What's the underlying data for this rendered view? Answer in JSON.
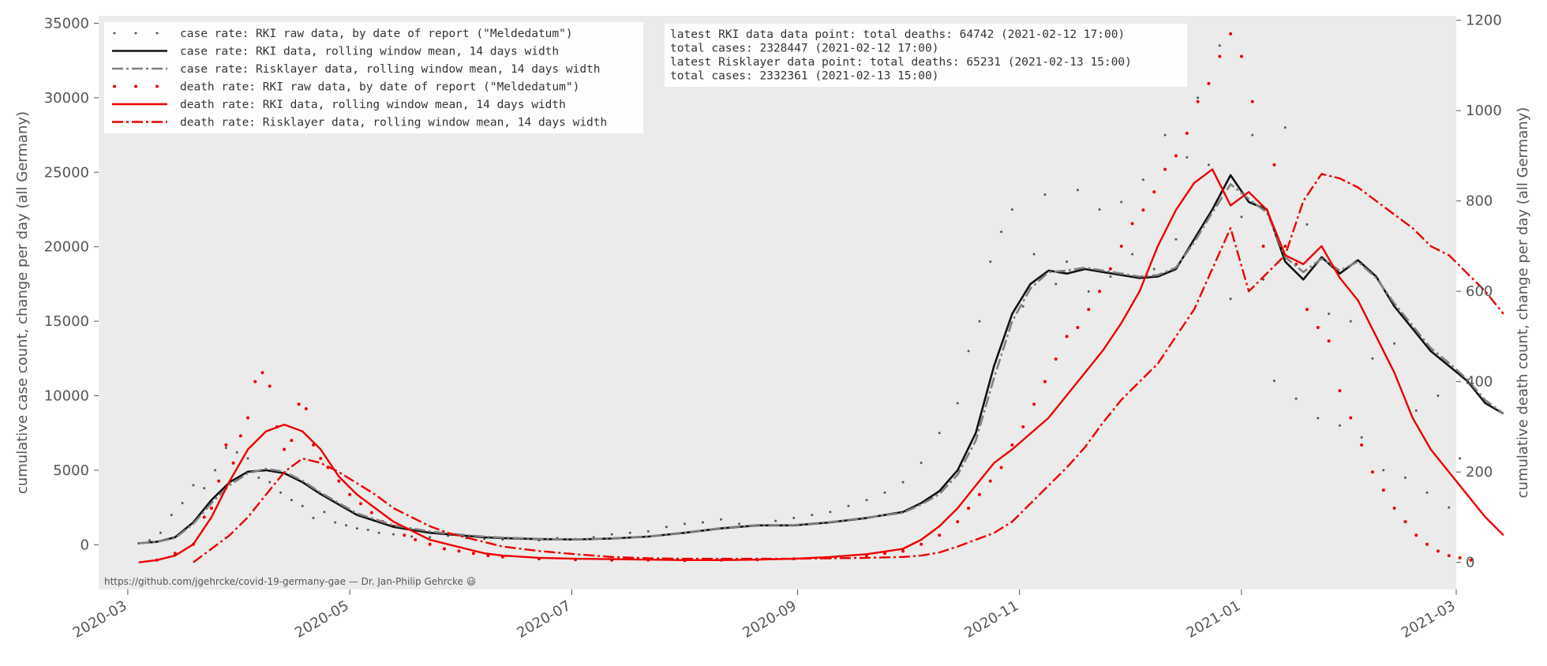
{
  "chart_data": {
    "type": "line",
    "x_start": "2020-03-04",
    "x_ticks": [
      "2020-03",
      "2020-05",
      "2020-07",
      "2020-09",
      "2020-11",
      "2021-01",
      "2021-03"
    ],
    "xlim": [
      "2020-02-22",
      "2021-03-01"
    ],
    "ylabel": "cumulative case count, change per day (all Germany)",
    "ylabel_right": "cumulative death count, change per day (all Germany)",
    "ylim": [
      -3000,
      35500
    ],
    "yticks": [
      0,
      5000,
      10000,
      15000,
      20000,
      25000,
      30000,
      35000
    ],
    "ylim_right": [
      -60,
      1210
    ],
    "yticks_right": [
      0,
      200,
      400,
      600,
      800,
      1000,
      1200
    ],
    "grid": false,
    "legend_position": "top-left",
    "legend": [
      "case rate:  RKI raw data, by date of report (\"Meldedatum\")",
      "case rate:  RKI data, rolling window mean, 14 days width",
      "case rate:  Risklayer data, rolling window mean, 14 days width",
      "death rate: RKI raw data, by date of report (\"Meldedatum\")",
      "death rate: RKI data, rolling window mean, 14 days width",
      "death rate: Risklayer data, rolling window mean, 14 days width"
    ],
    "info_box": [
      "latest RKI data data point:  total deaths:   64742 (2021-02-12 17:00)",
      "                             total cases:  2328447 (2021-02-12 17:00)",
      "latest Risklayer data point: total deaths:   65231 (2021-02-13 15:00)",
      "                             total cases:  2332361 (2021-02-13 15:00)"
    ],
    "footnote": "https://github.com/jgehrcke/covid-19-germany-gae — Dr. Jan-Philip Gehrcke 😃",
    "colors": {
      "background": "#ebebeb",
      "case_raw": "#555555",
      "case_rki": "#111111",
      "case_risklayer": "#808080",
      "death": "#ee0000"
    },
    "series": [
      {
        "name": "case rate:  RKI data, rolling window mean, 14 days width",
        "axis": "left",
        "x": [
          0,
          5,
          10,
          15,
          20,
          25,
          30,
          35,
          40,
          45,
          50,
          55,
          60,
          65,
          70,
          75,
          80,
          85,
          90,
          95,
          100,
          110,
          120,
          130,
          140,
          150,
          160,
          170,
          180,
          190,
          200,
          210,
          215,
          220,
          225,
          230,
          235,
          240,
          245,
          250,
          255,
          260,
          265,
          270,
          275,
          280,
          285,
          290,
          295,
          300,
          305,
          310,
          315,
          320,
          325,
          330,
          335,
          340,
          345,
          350,
          355,
          360,
          365,
          370,
          375,
          380,
          385
        ],
        "y": [
          100,
          200,
          500,
          1500,
          3000,
          4200,
          4900,
          5000,
          4800,
          4200,
          3400,
          2700,
          2000,
          1600,
          1200,
          1000,
          800,
          700,
          600,
          500,
          450,
          380,
          350,
          420,
          550,
          800,
          1100,
          1300,
          1300,
          1500,
          1800,
          2200,
          2800,
          3600,
          5000,
          7500,
          12000,
          15500,
          17500,
          18400,
          18200,
          18500,
          18300,
          18100,
          17900,
          18000,
          18500,
          20500,
          22500,
          24800,
          23000,
          22500,
          19000,
          17800,
          19300,
          18200,
          19100,
          18000,
          16000,
          14500,
          13000,
          12000,
          11000,
          9500,
          8800,
          null,
          null
        ]
      },
      {
        "name": "case rate:  Risklayer data, rolling window mean, 14 days width",
        "axis": "left",
        "x": [
          0,
          5,
          10,
          15,
          20,
          25,
          30,
          35,
          40,
          45,
          50,
          55,
          60,
          65,
          70,
          75,
          80,
          85,
          90,
          95,
          100,
          110,
          120,
          130,
          140,
          150,
          160,
          170,
          180,
          190,
          200,
          210,
          215,
          220,
          225,
          230,
          235,
          240,
          245,
          250,
          255,
          260,
          265,
          270,
          275,
          280,
          285,
          290,
          295,
          300,
          305,
          310,
          315,
          320,
          325,
          330,
          335,
          340,
          345,
          350,
          355,
          360,
          365,
          370,
          375
        ],
        "y": [
          100,
          200,
          450,
          1400,
          2800,
          4000,
          4800,
          5100,
          4900,
          4300,
          3500,
          2800,
          2100,
          1700,
          1300,
          1100,
          900,
          750,
          650,
          550,
          480,
          400,
          360,
          430,
          560,
          820,
          1120,
          1320,
          1320,
          1520,
          1820,
          2150,
          2700,
          3400,
          4700,
          7000,
          11200,
          15000,
          17200,
          18300,
          18400,
          18600,
          18400,
          18200,
          18000,
          18100,
          18600,
          20300,
          22300,
          24200,
          23200,
          22300,
          19300,
          18300,
          19200,
          18400,
          19000,
          17900,
          16200,
          14700,
          13200,
          12200,
          11100,
          9700,
          8800
        ]
      },
      {
        "name": "death rate: RKI data, rolling window mean, 14 days width",
        "axis": "right",
        "x": [
          0,
          5,
          10,
          15,
          20,
          25,
          30,
          35,
          40,
          45,
          50,
          55,
          60,
          65,
          70,
          75,
          80,
          85,
          90,
          95,
          100,
          110,
          120,
          130,
          140,
          150,
          160,
          170,
          180,
          190,
          200,
          210,
          215,
          220,
          225,
          230,
          235,
          240,
          245,
          250,
          255,
          260,
          265,
          270,
          275,
          280,
          285,
          290,
          295,
          300,
          305,
          310,
          315,
          320,
          325,
          330,
          335,
          340,
          345,
          350,
          355,
          360,
          365,
          370,
          375
        ],
        "y": [
          0,
          5,
          15,
          40,
          100,
          180,
          250,
          290,
          305,
          290,
          250,
          190,
          150,
          120,
          90,
          70,
          50,
          40,
          30,
          20,
          15,
          10,
          8,
          7,
          6,
          5,
          5,
          6,
          8,
          12,
          18,
          30,
          50,
          80,
          120,
          170,
          220,
          250,
          285,
          320,
          370,
          420,
          470,
          530,
          600,
          700,
          780,
          840,
          870,
          790,
          820,
          780,
          680,
          660,
          700,
          630,
          580,
          500,
          420,
          320,
          250,
          200,
          150,
          100,
          60
        ]
      },
      {
        "name": "death rate: Risklayer data, rolling window mean, 14 days width",
        "axis": "right",
        "x": [
          15,
          20,
          25,
          30,
          35,
          40,
          45,
          50,
          55,
          60,
          65,
          70,
          75,
          80,
          85,
          90,
          95,
          100,
          110,
          120,
          130,
          140,
          150,
          160,
          170,
          180,
          190,
          200,
          210,
          215,
          220,
          225,
          230,
          235,
          240,
          245,
          250,
          255,
          260,
          265,
          270,
          275,
          280,
          285,
          290,
          295,
          300,
          305,
          310,
          315,
          320,
          325,
          330,
          335,
          340,
          345,
          350,
          355,
          360,
          365,
          370,
          375,
          380
        ],
        "y": [
          0,
          30,
          60,
          100,
          150,
          200,
          230,
          220,
          200,
          175,
          150,
          120,
          100,
          80,
          65,
          55,
          45,
          35,
          25,
          18,
          12,
          9,
          8,
          8,
          8,
          8,
          9,
          10,
          12,
          15,
          22,
          35,
          50,
          65,
          90,
          130,
          170,
          210,
          255,
          310,
          360,
          400,
          440,
          500,
          560,
          650,
          740,
          600,
          640,
          680,
          800,
          860,
          850,
          830,
          800,
          770,
          740,
          700,
          680,
          640,
          600,
          550,
          null
        ]
      }
    ],
    "raw_case_points": [
      [
        0,
        100
      ],
      [
        3,
        300
      ],
      [
        6,
        800
      ],
      [
        9,
        2000
      ],
      [
        12,
        2800
      ],
      [
        15,
        4000
      ],
      [
        18,
        3800
      ],
      [
        21,
        5000
      ],
      [
        24,
        6500
      ],
      [
        27,
        6200
      ],
      [
        30,
        5800
      ],
      [
        33,
        4500
      ],
      [
        36,
        4200
      ],
      [
        39,
        3500
      ],
      [
        42,
        3000
      ],
      [
        45,
        2600
      ],
      [
        48,
        1800
      ],
      [
        51,
        2200
      ],
      [
        54,
        1500
      ],
      [
        57,
        1300
      ],
      [
        60,
        1100
      ],
      [
        63,
        1000
      ],
      [
        66,
        800
      ],
      [
        70,
        700
      ],
      [
        75,
        550
      ],
      [
        80,
        500
      ],
      [
        85,
        600
      ],
      [
        90,
        450
      ],
      [
        95,
        400
      ],
      [
        100,
        350
      ],
      [
        105,
        400
      ],
      [
        110,
        300
      ],
      [
        115,
        450
      ],
      [
        120,
        380
      ],
      [
        125,
        500
      ],
      [
        130,
        700
      ],
      [
        135,
        800
      ],
      [
        140,
        900
      ],
      [
        145,
        1200
      ],
      [
        150,
        1400
      ],
      [
        155,
        1500
      ],
      [
        160,
        1700
      ],
      [
        165,
        1400
      ],
      [
        170,
        1300
      ],
      [
        175,
        1600
      ],
      [
        180,
        1800
      ],
      [
        185,
        2000
      ],
      [
        190,
        2200
      ],
      [
        195,
        2600
      ],
      [
        200,
        3000
      ],
      [
        205,
        3500
      ],
      [
        210,
        4200
      ],
      [
        215,
        5500
      ],
      [
        220,
        7500
      ],
      [
        225,
        9500
      ],
      [
        228,
        13000
      ],
      [
        231,
        15000
      ],
      [
        234,
        19000
      ],
      [
        237,
        21000
      ],
      [
        240,
        22500
      ],
      [
        243,
        16000
      ],
      [
        246,
        19500
      ],
      [
        249,
        23500
      ],
      [
        252,
        17500
      ],
      [
        255,
        19000
      ],
      [
        258,
        23800
      ],
      [
        261,
        17000
      ],
      [
        264,
        22500
      ],
      [
        267,
        18000
      ],
      [
        270,
        23000
      ],
      [
        273,
        19500
      ],
      [
        276,
        24500
      ],
      [
        279,
        18500
      ],
      [
        282,
        27500
      ],
      [
        285,
        20500
      ],
      [
        288,
        26000
      ],
      [
        291,
        30000
      ],
      [
        294,
        25500
      ],
      [
        297,
        33500
      ],
      [
        300,
        16500
      ],
      [
        303,
        22000
      ],
      [
        306,
        27500
      ],
      [
        309,
        17800
      ],
      [
        312,
        11000
      ],
      [
        315,
        28000
      ],
      [
        318,
        9800
      ],
      [
        321,
        21500
      ],
      [
        324,
        8500
      ],
      [
        327,
        15500
      ],
      [
        330,
        8000
      ],
      [
        333,
        15000
      ],
      [
        336,
        7200
      ],
      [
        339,
        12500
      ],
      [
        342,
        5000
      ],
      [
        345,
        13500
      ],
      [
        348,
        4500
      ],
      [
        351,
        9000
      ],
      [
        354,
        3500
      ],
      [
        357,
        10000
      ],
      [
        360,
        2500
      ],
      [
        363,
        5800
      ]
    ],
    "raw_death_points": [
      [
        5,
        5
      ],
      [
        10,
        20
      ],
      [
        15,
        40
      ],
      [
        18,
        100
      ],
      [
        20,
        120
      ],
      [
        22,
        180
      ],
      [
        24,
        260
      ],
      [
        26,
        220
      ],
      [
        28,
        280
      ],
      [
        30,
        320
      ],
      [
        32,
        400
      ],
      [
        34,
        420
      ],
      [
        36,
        390
      ],
      [
        38,
        300
      ],
      [
        40,
        250
      ],
      [
        42,
        270
      ],
      [
        44,
        350
      ],
      [
        46,
        340
      ],
      [
        48,
        260
      ],
      [
        50,
        230
      ],
      [
        52,
        210
      ],
      [
        55,
        180
      ],
      [
        58,
        150
      ],
      [
        61,
        130
      ],
      [
        64,
        110
      ],
      [
        67,
        90
      ],
      [
        70,
        80
      ],
      [
        73,
        60
      ],
      [
        76,
        50
      ],
      [
        80,
        40
      ],
      [
        84,
        30
      ],
      [
        88,
        25
      ],
      [
        92,
        20
      ],
      [
        96,
        15
      ],
      [
        100,
        12
      ],
      [
        110,
        8
      ],
      [
        120,
        6
      ],
      [
        130,
        5
      ],
      [
        140,
        5
      ],
      [
        150,
        4
      ],
      [
        160,
        5
      ],
      [
        170,
        6
      ],
      [
        180,
        8
      ],
      [
        190,
        10
      ],
      [
        200,
        15
      ],
      [
        205,
        20
      ],
      [
        210,
        25
      ],
      [
        215,
        40
      ],
      [
        220,
        60
      ],
      [
        225,
        90
      ],
      [
        228,
        120
      ],
      [
        231,
        150
      ],
      [
        234,
        180
      ],
      [
        237,
        210
      ],
      [
        240,
        260
      ],
      [
        243,
        300
      ],
      [
        246,
        350
      ],
      [
        249,
        400
      ],
      [
        252,
        450
      ],
      [
        255,
        500
      ],
      [
        258,
        520
      ],
      [
        261,
        560
      ],
      [
        264,
        600
      ],
      [
        267,
        650
      ],
      [
        270,
        700
      ],
      [
        273,
        750
      ],
      [
        276,
        780
      ],
      [
        279,
        820
      ],
      [
        282,
        870
      ],
      [
        285,
        900
      ],
      [
        288,
        950
      ],
      [
        291,
        1020
      ],
      [
        294,
        1060
      ],
      [
        297,
        1120
      ],
      [
        300,
        1170
      ],
      [
        303,
        1120
      ],
      [
        306,
        1020
      ],
      [
        309,
        700
      ],
      [
        312,
        880
      ],
      [
        315,
        700
      ],
      [
        318,
        660
      ],
      [
        321,
        560
      ],
      [
        324,
        520
      ],
      [
        327,
        490
      ],
      [
        330,
        380
      ],
      [
        333,
        320
      ],
      [
        336,
        260
      ],
      [
        339,
        200
      ],
      [
        342,
        160
      ],
      [
        345,
        120
      ],
      [
        348,
        90
      ],
      [
        351,
        60
      ],
      [
        354,
        40
      ],
      [
        357,
        25
      ],
      [
        360,
        15
      ],
      [
        363,
        10
      ],
      [
        366,
        5
      ]
    ]
  }
}
